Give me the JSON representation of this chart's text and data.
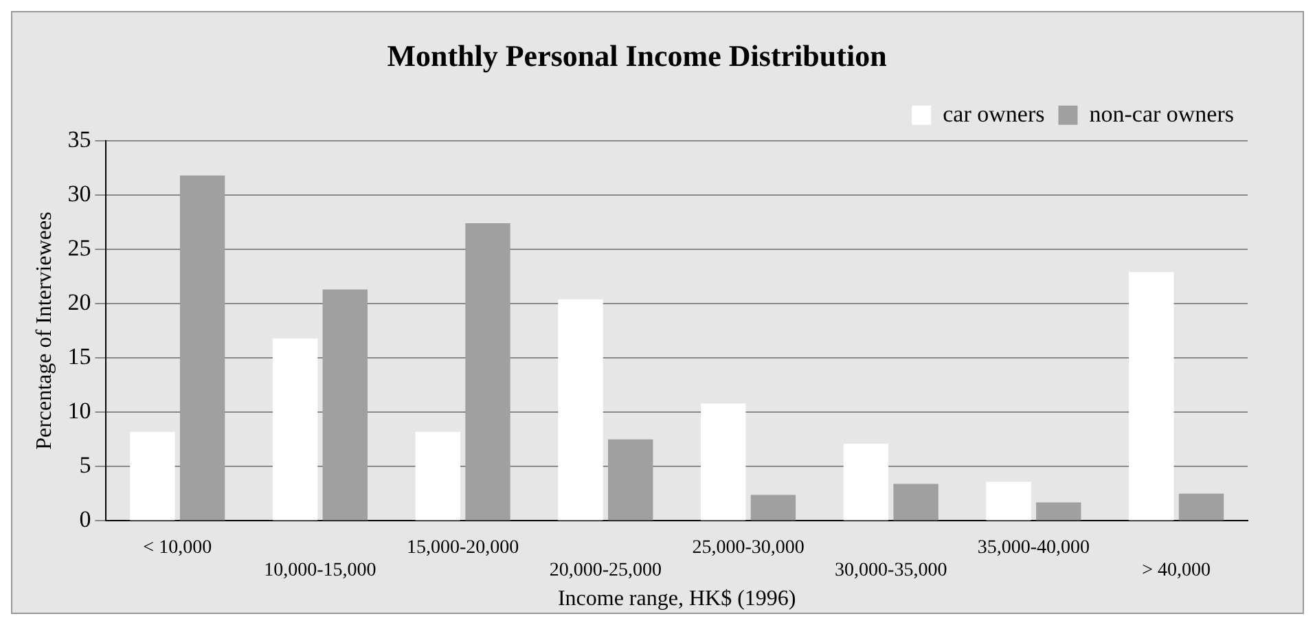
{
  "chart_data": {
    "type": "bar",
    "title": "Monthly Personal Income Distribution",
    "xlabel": "Income range, HK$ (1996)",
    "ylabel": "Percentage of Interviewees",
    "categories": [
      "< 10,000",
      "10,000-15,000",
      "15,000-20,000",
      "20,000-25,000",
      "25,000-30,000",
      "30,000-35,000",
      "35,000-40,000",
      "> 40,000"
    ],
    "series": [
      {
        "name": "car owners",
        "color": "#ffffff",
        "values": [
          8.2,
          16.8,
          8.2,
          20.4,
          10.8,
          7.1,
          3.6,
          22.9
        ]
      },
      {
        "name": "non-car owners",
        "color": "#a0a0a0",
        "values": [
          31.8,
          21.3,
          27.4,
          7.5,
          2.4,
          3.4,
          1.7,
          2.5
        ]
      }
    ],
    "ylim": [
      0,
      35
    ],
    "yticks": [
      0,
      5,
      10,
      15,
      20,
      25,
      30,
      35
    ],
    "grid": "y",
    "legend": "top right"
  }
}
